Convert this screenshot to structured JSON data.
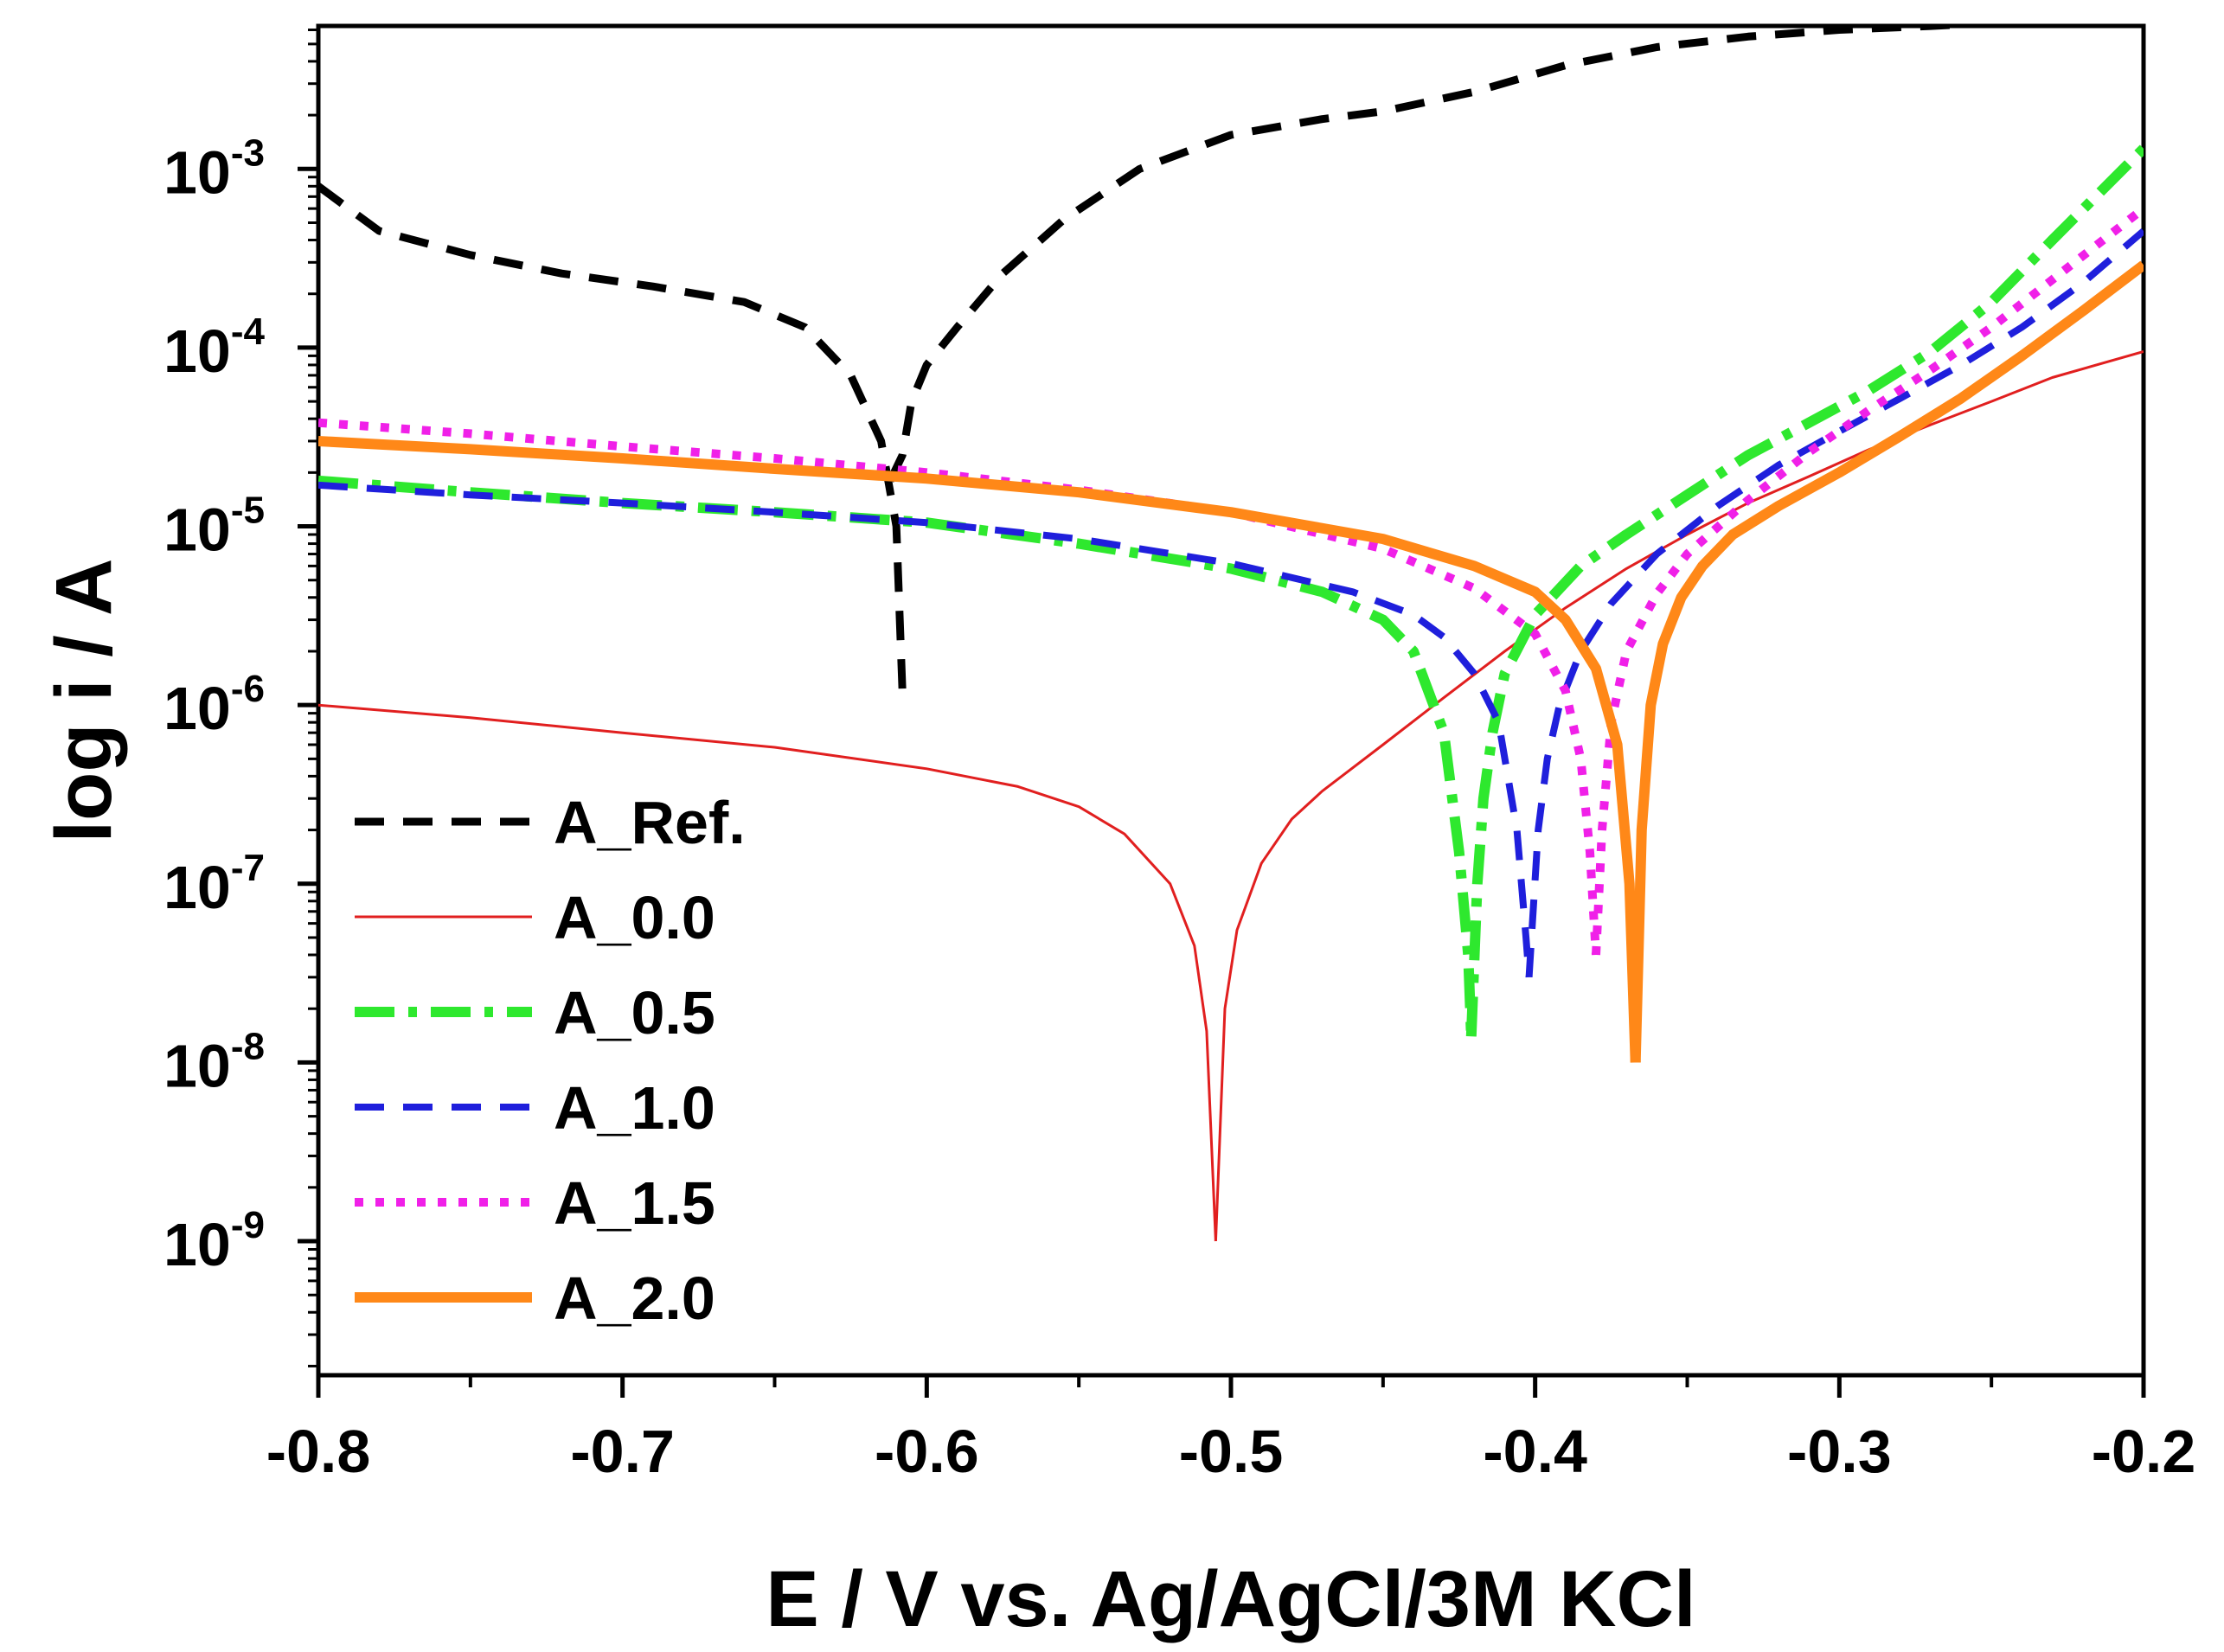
{
  "chart_data": {
    "type": "line",
    "title": "",
    "xlabel": "E / V vs. Ag/AgCl/3M KCl",
    "ylabel": "log i / A",
    "xlim": [
      -0.8,
      -0.2
    ],
    "ylim_log10": [
      -9.75,
      -2.2
    ],
    "yscale": "log",
    "x_ticks": [
      -0.8,
      -0.7,
      -0.6,
      -0.5,
      -0.4,
      -0.3,
      -0.2
    ],
    "x_tick_labels": [
      "-0.8",
      "-0.7",
      "-0.6",
      "-0.5",
      "-0.4",
      "-0.3",
      "-0.2"
    ],
    "y_ticks": [
      {
        "exp": -9,
        "base": "10",
        "sup": "-9"
      },
      {
        "exp": -8,
        "base": "10",
        "sup": "-8"
      },
      {
        "exp": -7,
        "base": "10",
        "sup": "-7"
      },
      {
        "exp": -6,
        "base": "10",
        "sup": "-6"
      },
      {
        "exp": -5,
        "base": "10",
        "sup": "-5"
      },
      {
        "exp": -4,
        "base": "10",
        "sup": "-4"
      },
      {
        "exp": -3,
        "base": "10",
        "sup": "-3"
      }
    ],
    "legend_position": "bottom-left",
    "series": [
      {
        "name": "A_Ref.",
        "color": "#000000",
        "dash": "dashed",
        "width": 9,
        "branches": [
          {
            "x": [
              -0.8,
              -0.78,
              -0.75,
              -0.72,
              -0.69,
              -0.66,
              -0.64,
              -0.625,
              -0.615,
              -0.61,
              -0.608
            ],
            "y": [
              0.0008,
              0.00045,
              0.00033,
              0.00026,
              0.00022,
              0.00018,
              0.00013,
              7e-05,
              3e-05,
              1e-05,
              1.2e-06
            ]
          },
          {
            "x": [
              -0.612,
              -0.608,
              -0.605,
              -0.6,
              -0.59,
              -0.575,
              -0.555,
              -0.53,
              -0.5,
              -0.47,
              -0.45,
              -0.42,
              -0.39,
              -0.36,
              -0.33,
              -0.3,
              -0.27,
              -0.24,
              -0.22
            ],
            "y": [
              1.8e-05,
              2.5e-05,
              5e-05,
              8e-05,
              0.00013,
              0.00026,
              0.00052,
              0.001,
              0.00155,
              0.0019,
              0.0021,
              0.0027,
              0.0038,
              0.0048,
              0.0055,
              0.006,
              0.0063,
              0.0067,
              0.0069
            ]
          }
        ]
      },
      {
        "name": "A_0.0",
        "color": "#e11f1f",
        "dash": "solid",
        "width": 3,
        "branches": [
          {
            "x": [
              -0.8,
              -0.75,
              -0.7,
              -0.65,
              -0.6,
              -0.57,
              -0.55,
              -0.535,
              -0.52,
              -0.512,
              -0.508,
              -0.505
            ],
            "y": [
              1e-06,
              8.5e-07,
              7e-07,
              5.8e-07,
              4.4e-07,
              3.5e-07,
              2.7e-07,
              1.9e-07,
              1e-07,
              4.5e-08,
              1.5e-08,
              1e-09
            ]
          },
          {
            "x": [
              -0.505,
              -0.502,
              -0.498,
              -0.49,
              -0.48,
              -0.47,
              -0.45,
              -0.43,
              -0.41,
              -0.39,
              -0.37,
              -0.35,
              -0.33,
              -0.31,
              -0.29,
              -0.27,
              -0.25,
              -0.23,
              -0.2
            ],
            "y": [
              1e-09,
              2e-08,
              5.5e-08,
              1.3e-07,
              2.3e-07,
              3.3e-07,
              6e-07,
              1.1e-06,
              2e-06,
              3.5e-06,
              5.8e-06,
              9e-06,
              1.35e-05,
              1.9e-05,
              2.7e-05,
              3.7e-05,
              5e-05,
              6.8e-05,
              9.5e-05
            ]
          }
        ]
      },
      {
        "name": "A_0.5",
        "color": "#2ee82e",
        "dash": "dashdot",
        "width": 12,
        "branches": [
          {
            "x": [
              -0.8,
              -0.75,
              -0.7,
              -0.65,
              -0.6,
              -0.55,
              -0.5,
              -0.47,
              -0.45,
              -0.44,
              -0.43,
              -0.425,
              -0.422,
              -0.421
            ],
            "y": [
              1.8e-05,
              1.55e-05,
              1.35e-05,
              1.2e-05,
              1.05e-05,
              8e-06,
              5.8e-06,
              4.3e-06,
              3e-06,
              2e-06,
              7e-07,
              1.5e-07,
              4e-08,
              1.4e-08
            ]
          },
          {
            "x": [
              -0.421,
              -0.419,
              -0.417,
              -0.414,
              -0.41,
              -0.4,
              -0.385,
              -0.37,
              -0.35,
              -0.33,
              -0.31,
              -0.29,
              -0.27,
              -0.25,
              -0.23,
              -0.2
            ],
            "y": [
              1.4e-08,
              1e-07,
              3e-07,
              7e-07,
              1.5e-06,
              3.2e-06,
              6e-06,
              9e-06,
              1.5e-05,
              2.5e-05,
              3.8e-05,
              5.8e-05,
              9.5e-05,
              0.00018,
              0.0004,
              0.0013
            ]
          }
        ]
      },
      {
        "name": "A_1.0",
        "color": "#1f1fdc",
        "dash": "dashed",
        "width": 8,
        "branches": [
          {
            "x": [
              -0.8,
              -0.75,
              -0.7,
              -0.65,
              -0.6,
              -0.55,
              -0.5,
              -0.46,
              -0.44,
              -0.43,
              -0.42,
              -0.412,
              -0.406,
              -0.403,
              -0.402
            ],
            "y": [
              1.7e-05,
              1.5e-05,
              1.35e-05,
              1.2e-05,
              1.05e-05,
              8.5e-06,
              6.2e-06,
              4.3e-06,
              3.2e-06,
              2.4e-06,
              1.5e-06,
              8e-07,
              2e-07,
              5e-08,
              3e-08
            ]
          },
          {
            "x": [
              -0.402,
              -0.399,
              -0.396,
              -0.392,
              -0.385,
              -0.375,
              -0.36,
              -0.34,
              -0.32,
              -0.3,
              -0.28,
              -0.26,
              -0.24,
              -0.22,
              -0.2
            ],
            "y": [
              3e-08,
              2e-07,
              5e-07,
              1e-06,
              2e-06,
              3.7e-06,
              7e-06,
              1.3e-05,
              2.2e-05,
              3.4e-05,
              5.2e-05,
              8e-05,
              0.00013,
              0.00023,
              0.00045
            ]
          }
        ]
      },
      {
        "name": "A_1.5",
        "color": "#f020e8",
        "dash": "dotted",
        "width": 10,
        "branches": [
          {
            "x": [
              -0.8,
              -0.75,
              -0.7,
              -0.65,
              -0.6,
              -0.55,
              -0.5,
              -0.45,
              -0.42,
              -0.4,
              -0.39,
              -0.385,
              -0.382,
              -0.38
            ],
            "y": [
              3.8e-05,
              3.3e-05,
              2.8e-05,
              2.4e-05,
              2e-05,
              1.6e-05,
              1.2e-05,
              7.5e-06,
              4.5e-06,
              2.5e-06,
              1.2e-06,
              5e-07,
              1.5e-07,
              4e-08
            ]
          },
          {
            "x": [
              -0.38,
              -0.378,
              -0.375,
              -0.37,
              -0.36,
              -0.35,
              -0.33,
              -0.31,
              -0.29,
              -0.27,
              -0.25,
              -0.23,
              -0.2
            ],
            "y": [
              4e-08,
              2e-07,
              8e-07,
              2e-06,
              4.2e-06,
              7e-06,
              1.4e-05,
              2.6e-05,
              4.5e-05,
              7.5e-05,
              0.00013,
              0.00024,
              0.0006
            ]
          }
        ]
      },
      {
        "name": "A_2.0",
        "color": "#ff8818",
        "dash": "solid",
        "width": 12,
        "branches": [
          {
            "x": [
              -0.8,
              -0.75,
              -0.7,
              -0.65,
              -0.6,
              -0.55,
              -0.5,
              -0.45,
              -0.42,
              -0.4,
              -0.39,
              -0.38,
              -0.373,
              -0.369,
              -0.367
            ],
            "y": [
              3e-05,
              2.7e-05,
              2.4e-05,
              2.1e-05,
              1.85e-05,
              1.55e-05,
              1.2e-05,
              8.5e-06,
              6e-06,
              4.3e-06,
              3e-06,
              1.6e-06,
              6e-07,
              1e-07,
              1e-08
            ]
          },
          {
            "x": [
              -0.367,
              -0.365,
              -0.362,
              -0.358,
              -0.352,
              -0.345,
              -0.335,
              -0.32,
              -0.3,
              -0.28,
              -0.26,
              -0.24,
              -0.22,
              -0.2
            ],
            "y": [
              1e-08,
              2e-07,
              1e-06,
              2.2e-06,
              4e-06,
              6e-06,
              9e-06,
              1.3e-05,
              2e-05,
              3.2e-05,
              5.2e-05,
              9e-05,
              0.00016,
              0.00029
            ]
          }
        ]
      }
    ]
  }
}
